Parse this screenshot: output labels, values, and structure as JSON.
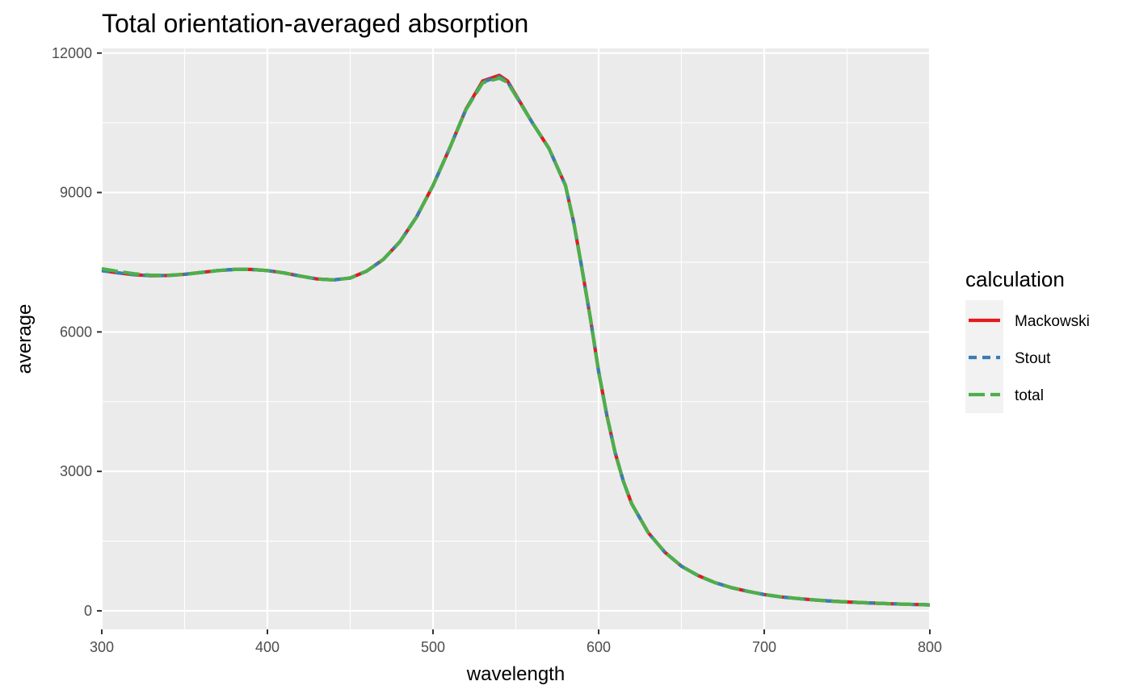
{
  "chart_data": {
    "type": "line",
    "title": "Total orientation-averaged absorption",
    "xlabel": "wavelength",
    "ylabel": "average",
    "xlim": [
      300,
      800
    ],
    "ylim": [
      -400,
      12100
    ],
    "x_ticks": [
      300,
      400,
      500,
      600,
      700,
      800
    ],
    "y_ticks": [
      0,
      3000,
      6000,
      9000,
      12000
    ],
    "x_tick_labels": [
      "300",
      "400",
      "500",
      "600",
      "700",
      "800"
    ],
    "y_tick_labels": [
      "0",
      "3000",
      "6000",
      "9000",
      "12000"
    ],
    "grid": true,
    "legend": {
      "title": "calculation",
      "position": "right"
    },
    "x": [
      300,
      310,
      320,
      330,
      340,
      350,
      360,
      370,
      380,
      390,
      400,
      410,
      420,
      430,
      440,
      450,
      460,
      470,
      480,
      490,
      500,
      510,
      520,
      530,
      540,
      545,
      550,
      560,
      570,
      580,
      585,
      590,
      595,
      600,
      605,
      610,
      615,
      620,
      630,
      640,
      650,
      660,
      670,
      680,
      690,
      700,
      710,
      720,
      730,
      740,
      750,
      760,
      770,
      780,
      790,
      800
    ],
    "series": [
      {
        "name": "Mackowski",
        "color": "#e41a1c",
        "dash": "solid",
        "values": [
          7320,
          7270,
          7230,
          7210,
          7215,
          7240,
          7280,
          7320,
          7345,
          7345,
          7320,
          7270,
          7200,
          7140,
          7120,
          7160,
          7310,
          7560,
          7940,
          8470,
          9150,
          9950,
          10800,
          11400,
          11520,
          11400,
          11100,
          10500,
          9950,
          9150,
          8350,
          7350,
          6300,
          5150,
          4200,
          3400,
          2780,
          2300,
          1680,
          1260,
          960,
          760,
          610,
          500,
          420,
          350,
          300,
          265,
          235,
          210,
          190,
          175,
          160,
          148,
          137,
          128
        ]
      },
      {
        "name": "Stout",
        "color": "#377eb8",
        "dash": "dashed",
        "values": [
          7320,
          7270,
          7230,
          7210,
          7215,
          7240,
          7280,
          7320,
          7345,
          7345,
          7320,
          7270,
          7200,
          7140,
          7120,
          7160,
          7310,
          7560,
          7940,
          8470,
          9150,
          9950,
          10800,
          11380,
          11490,
          11380,
          11090,
          10500,
          9950,
          9150,
          8350,
          7350,
          6300,
          5150,
          4200,
          3400,
          2780,
          2300,
          1680,
          1260,
          960,
          760,
          610,
          500,
          420,
          350,
          300,
          265,
          235,
          210,
          190,
          175,
          160,
          148,
          137,
          128
        ]
      },
      {
        "name": "total",
        "color": "#4daf4a",
        "dash": "longdash",
        "values": [
          7360,
          7300,
          7250,
          7220,
          7220,
          7240,
          7280,
          7320,
          7345,
          7345,
          7320,
          7270,
          7200,
          7140,
          7120,
          7160,
          7310,
          7560,
          7940,
          8470,
          9150,
          9950,
          10790,
          11360,
          11460,
          11370,
          11080,
          10500,
          9950,
          9150,
          8350,
          7350,
          6300,
          5150,
          4200,
          3400,
          2780,
          2300,
          1680,
          1260,
          960,
          760,
          610,
          500,
          420,
          350,
          300,
          265,
          235,
          210,
          190,
          175,
          160,
          148,
          137,
          128
        ]
      }
    ]
  }
}
